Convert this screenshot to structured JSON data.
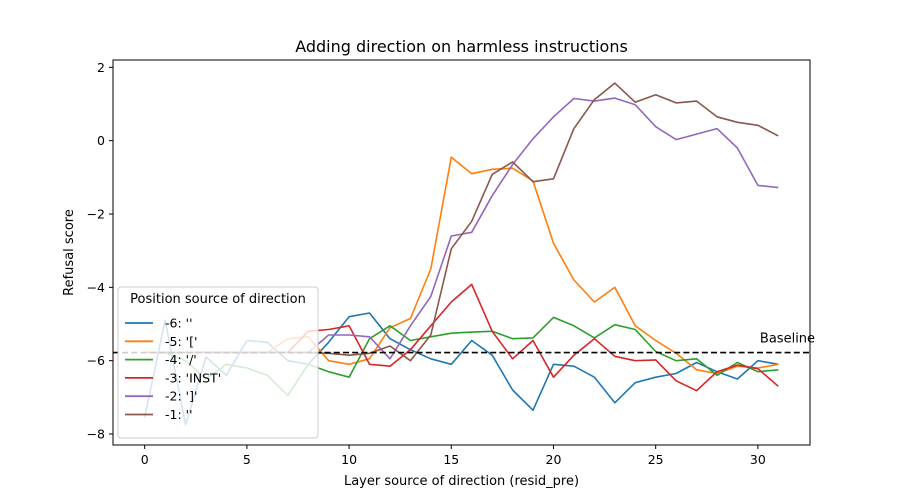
{
  "chart_data": {
    "type": "line",
    "title": "Adding direction on harmless instructions",
    "xlabel": "Layer source of direction (resid_pre)",
    "ylabel": "Refusal score",
    "xlim": [
      -1.55,
      32.55
    ],
    "ylim": [
      -8.3,
      2.2
    ],
    "xticks": [
      0,
      5,
      10,
      15,
      20,
      25,
      30
    ],
    "yticks": [
      -8,
      -6,
      -4,
      -2,
      0,
      2
    ],
    "grid": false,
    "baseline": {
      "label": "Baseline",
      "value": -5.78,
      "style": "dashed",
      "color": "#000000"
    },
    "legend": {
      "title": "Position source of direction",
      "placement": "lower-left"
    },
    "x": [
      0,
      1,
      2,
      3,
      4,
      5,
      6,
      7,
      8,
      9,
      10,
      11,
      12,
      13,
      14,
      15,
      16,
      17,
      18,
      19,
      20,
      21,
      22,
      23,
      24,
      25,
      26,
      27,
      28,
      29,
      30,
      31
    ],
    "series": [
      {
        "name": "-6: ''",
        "color": "#1f77b4",
        "values": [
          -7.55,
          -4.9,
          -7.75,
          -5.9,
          -6.4,
          -5.45,
          -5.5,
          -6.0,
          -6.1,
          -5.5,
          -4.8,
          -4.7,
          -5.4,
          -5.7,
          -5.95,
          -6.1,
          -5.45,
          -5.85,
          -6.8,
          -7.35,
          -6.1,
          -6.15,
          -6.45,
          -7.15,
          -6.6,
          -6.45,
          -6.35,
          -6.05,
          -6.3,
          -6.5,
          -6.0,
          -6.1
        ]
      },
      {
        "name": "-5: '['",
        "color": "#ff7f0e",
        "values": [
          -5.78,
          -5.78,
          -5.78,
          -5.78,
          -5.78,
          -5.78,
          -5.78,
          -5.4,
          -5.35,
          -6.0,
          -6.1,
          -5.95,
          -5.1,
          -4.85,
          -3.5,
          -0.45,
          -0.9,
          -0.78,
          -0.75,
          -1.1,
          -2.8,
          -3.8,
          -4.4,
          -4.0,
          -5.05,
          -5.45,
          -5.8,
          -6.25,
          -6.35,
          -6.15,
          -6.2,
          -6.1
        ]
      },
      {
        "name": "-4: '/'",
        "color": "#2ca02c",
        "values": [
          -5.78,
          -5.78,
          -6.0,
          -6.5,
          -6.1,
          -6.2,
          -6.4,
          -6.95,
          -6.1,
          -6.3,
          -6.45,
          -5.4,
          -5.05,
          -5.45,
          -5.35,
          -5.25,
          -5.22,
          -5.2,
          -5.4,
          -5.38,
          -4.82,
          -5.05,
          -5.38,
          -5.02,
          -5.15,
          -5.75,
          -6.0,
          -5.95,
          -6.4,
          -6.05,
          -6.3,
          -6.25
        ]
      },
      {
        "name": "-3: 'INST'",
        "color": "#d62728",
        "values": [
          -5.78,
          -5.78,
          -5.78,
          -5.78,
          -5.78,
          -5.78,
          -5.78,
          -5.78,
          -5.2,
          -5.15,
          -5.05,
          -6.1,
          -6.15,
          -5.7,
          -5.05,
          -4.4,
          -3.92,
          -5.2,
          -5.95,
          -5.45,
          -6.45,
          -5.85,
          -5.4,
          -5.88,
          -6.0,
          -5.98,
          -6.55,
          -6.82,
          -6.3,
          -6.12,
          -6.22,
          -6.7
        ]
      },
      {
        "name": "-2: ']'",
        "color": "#9467bd",
        "values": [
          -5.78,
          -5.78,
          -5.78,
          -5.78,
          -5.78,
          -5.78,
          -5.78,
          -5.78,
          -5.78,
          -5.3,
          -5.3,
          -5.35,
          -5.95,
          -5.05,
          -4.25,
          -2.6,
          -2.5,
          -1.5,
          -0.65,
          0.05,
          0.65,
          1.15,
          1.08,
          1.16,
          0.98,
          0.38,
          0.03,
          0.18,
          0.33,
          -0.2,
          -1.22,
          -1.28
        ]
      },
      {
        "name": "-1: ''",
        "color": "#8c564b",
        "values": [
          -5.78,
          -5.78,
          -5.78,
          -5.78,
          -5.78,
          -5.78,
          -5.78,
          -5.78,
          -5.78,
          -5.8,
          -5.85,
          -5.8,
          -5.6,
          -6.0,
          -5.3,
          -2.95,
          -2.2,
          -0.92,
          -0.58,
          -1.12,
          -1.04,
          0.33,
          1.12,
          1.57,
          1.05,
          1.25,
          1.03,
          1.08,
          0.65,
          0.5,
          0.42,
          0.13
        ]
      }
    ]
  }
}
